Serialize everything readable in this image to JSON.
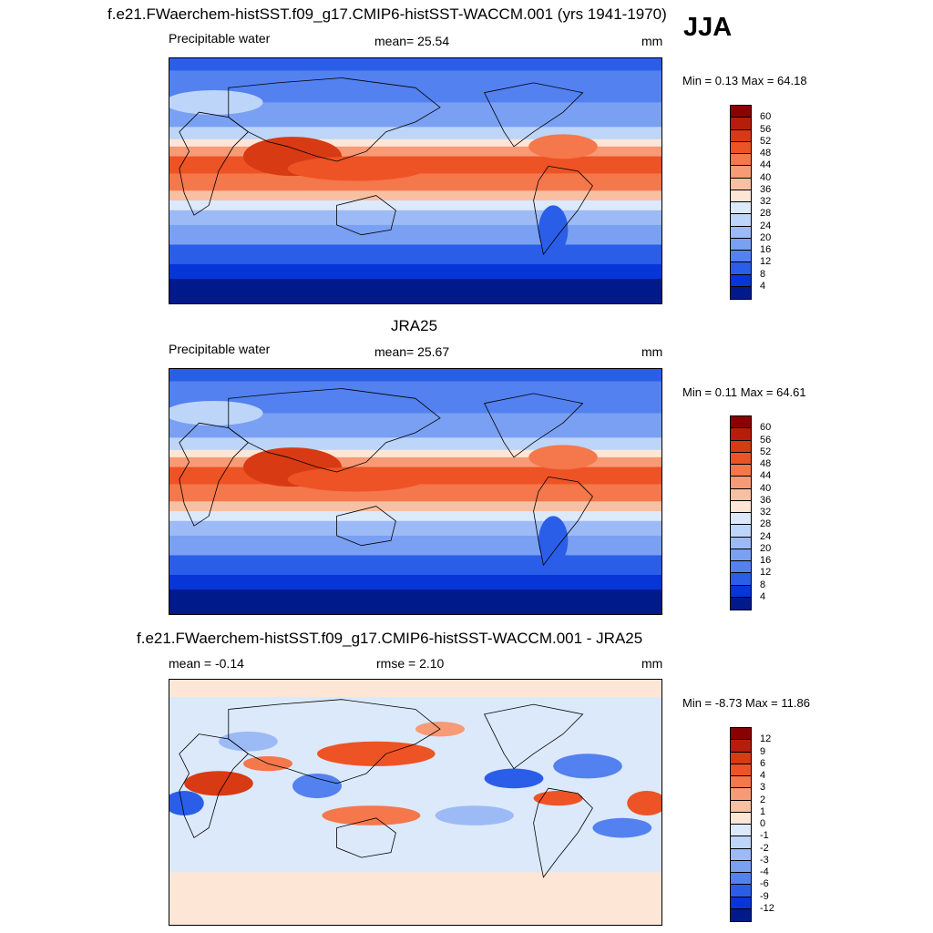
{
  "season": "JJA",
  "panels": [
    {
      "title": "f.e21.FWaerchem-histSST.f09_g17.CMIP6-histSST-WACCM.001 (yrs 1941-1970)",
      "left_label": "Precipitable water",
      "center_label": "mean=  25.54",
      "units": "mm",
      "minmax": "Min =   0.13 Max =  64.18",
      "kind": "field",
      "levels": [
        "60",
        "56",
        "52",
        "48",
        "44",
        "40",
        "36",
        "32",
        "28",
        "24",
        "20",
        "16",
        "12",
        "8",
        "4"
      ]
    },
    {
      "title": "JRA25",
      "left_label": "Precipitable water",
      "center_label": "mean=  25.67",
      "units": "mm",
      "minmax": "Min =   0.11 Max =  64.61",
      "kind": "field",
      "levels": [
        "60",
        "56",
        "52",
        "48",
        "44",
        "40",
        "36",
        "32",
        "28",
        "24",
        "20",
        "16",
        "12",
        "8",
        "4"
      ]
    },
    {
      "title": "f.e21.FWaerchem-histSST.f09_g17.CMIP6-histSST-WACCM.001 - JRA25",
      "left_label": "mean =  -0.14",
      "center_label": "rmse =    2.10",
      "units": "mm",
      "minmax": "Min =  -8.73 Max =  11.86",
      "kind": "diff",
      "levels": [
        "12",
        "9",
        "6",
        "4",
        "3",
        "2",
        "1",
        "0",
        "-1",
        "-2",
        "-3",
        "-4",
        "-6",
        "-9",
        "-12"
      ]
    }
  ],
  "colors": {
    "field_scale": [
      "#8b0000",
      "#b81c0b",
      "#d83a14",
      "#ee5325",
      "#f5774c",
      "#f79a76",
      "#f8c0a3",
      "#fde6d6",
      "#dce9fb",
      "#bdd5f8",
      "#9cbaf6",
      "#7aa0f3",
      "#5381f0",
      "#2b5ee8",
      "#0636d8",
      "#001a8c"
    ],
    "diff_scale": [
      "#8b0000",
      "#b81c0b",
      "#d83a14",
      "#ee5325",
      "#f5774c",
      "#f79a76",
      "#f8c0a3",
      "#fde6d6",
      "#dce9fb",
      "#bdd5f8",
      "#9cbaf6",
      "#7aa0f3",
      "#5381f0",
      "#2b5ee8",
      "#0636d8",
      "#001a8c"
    ]
  }
}
